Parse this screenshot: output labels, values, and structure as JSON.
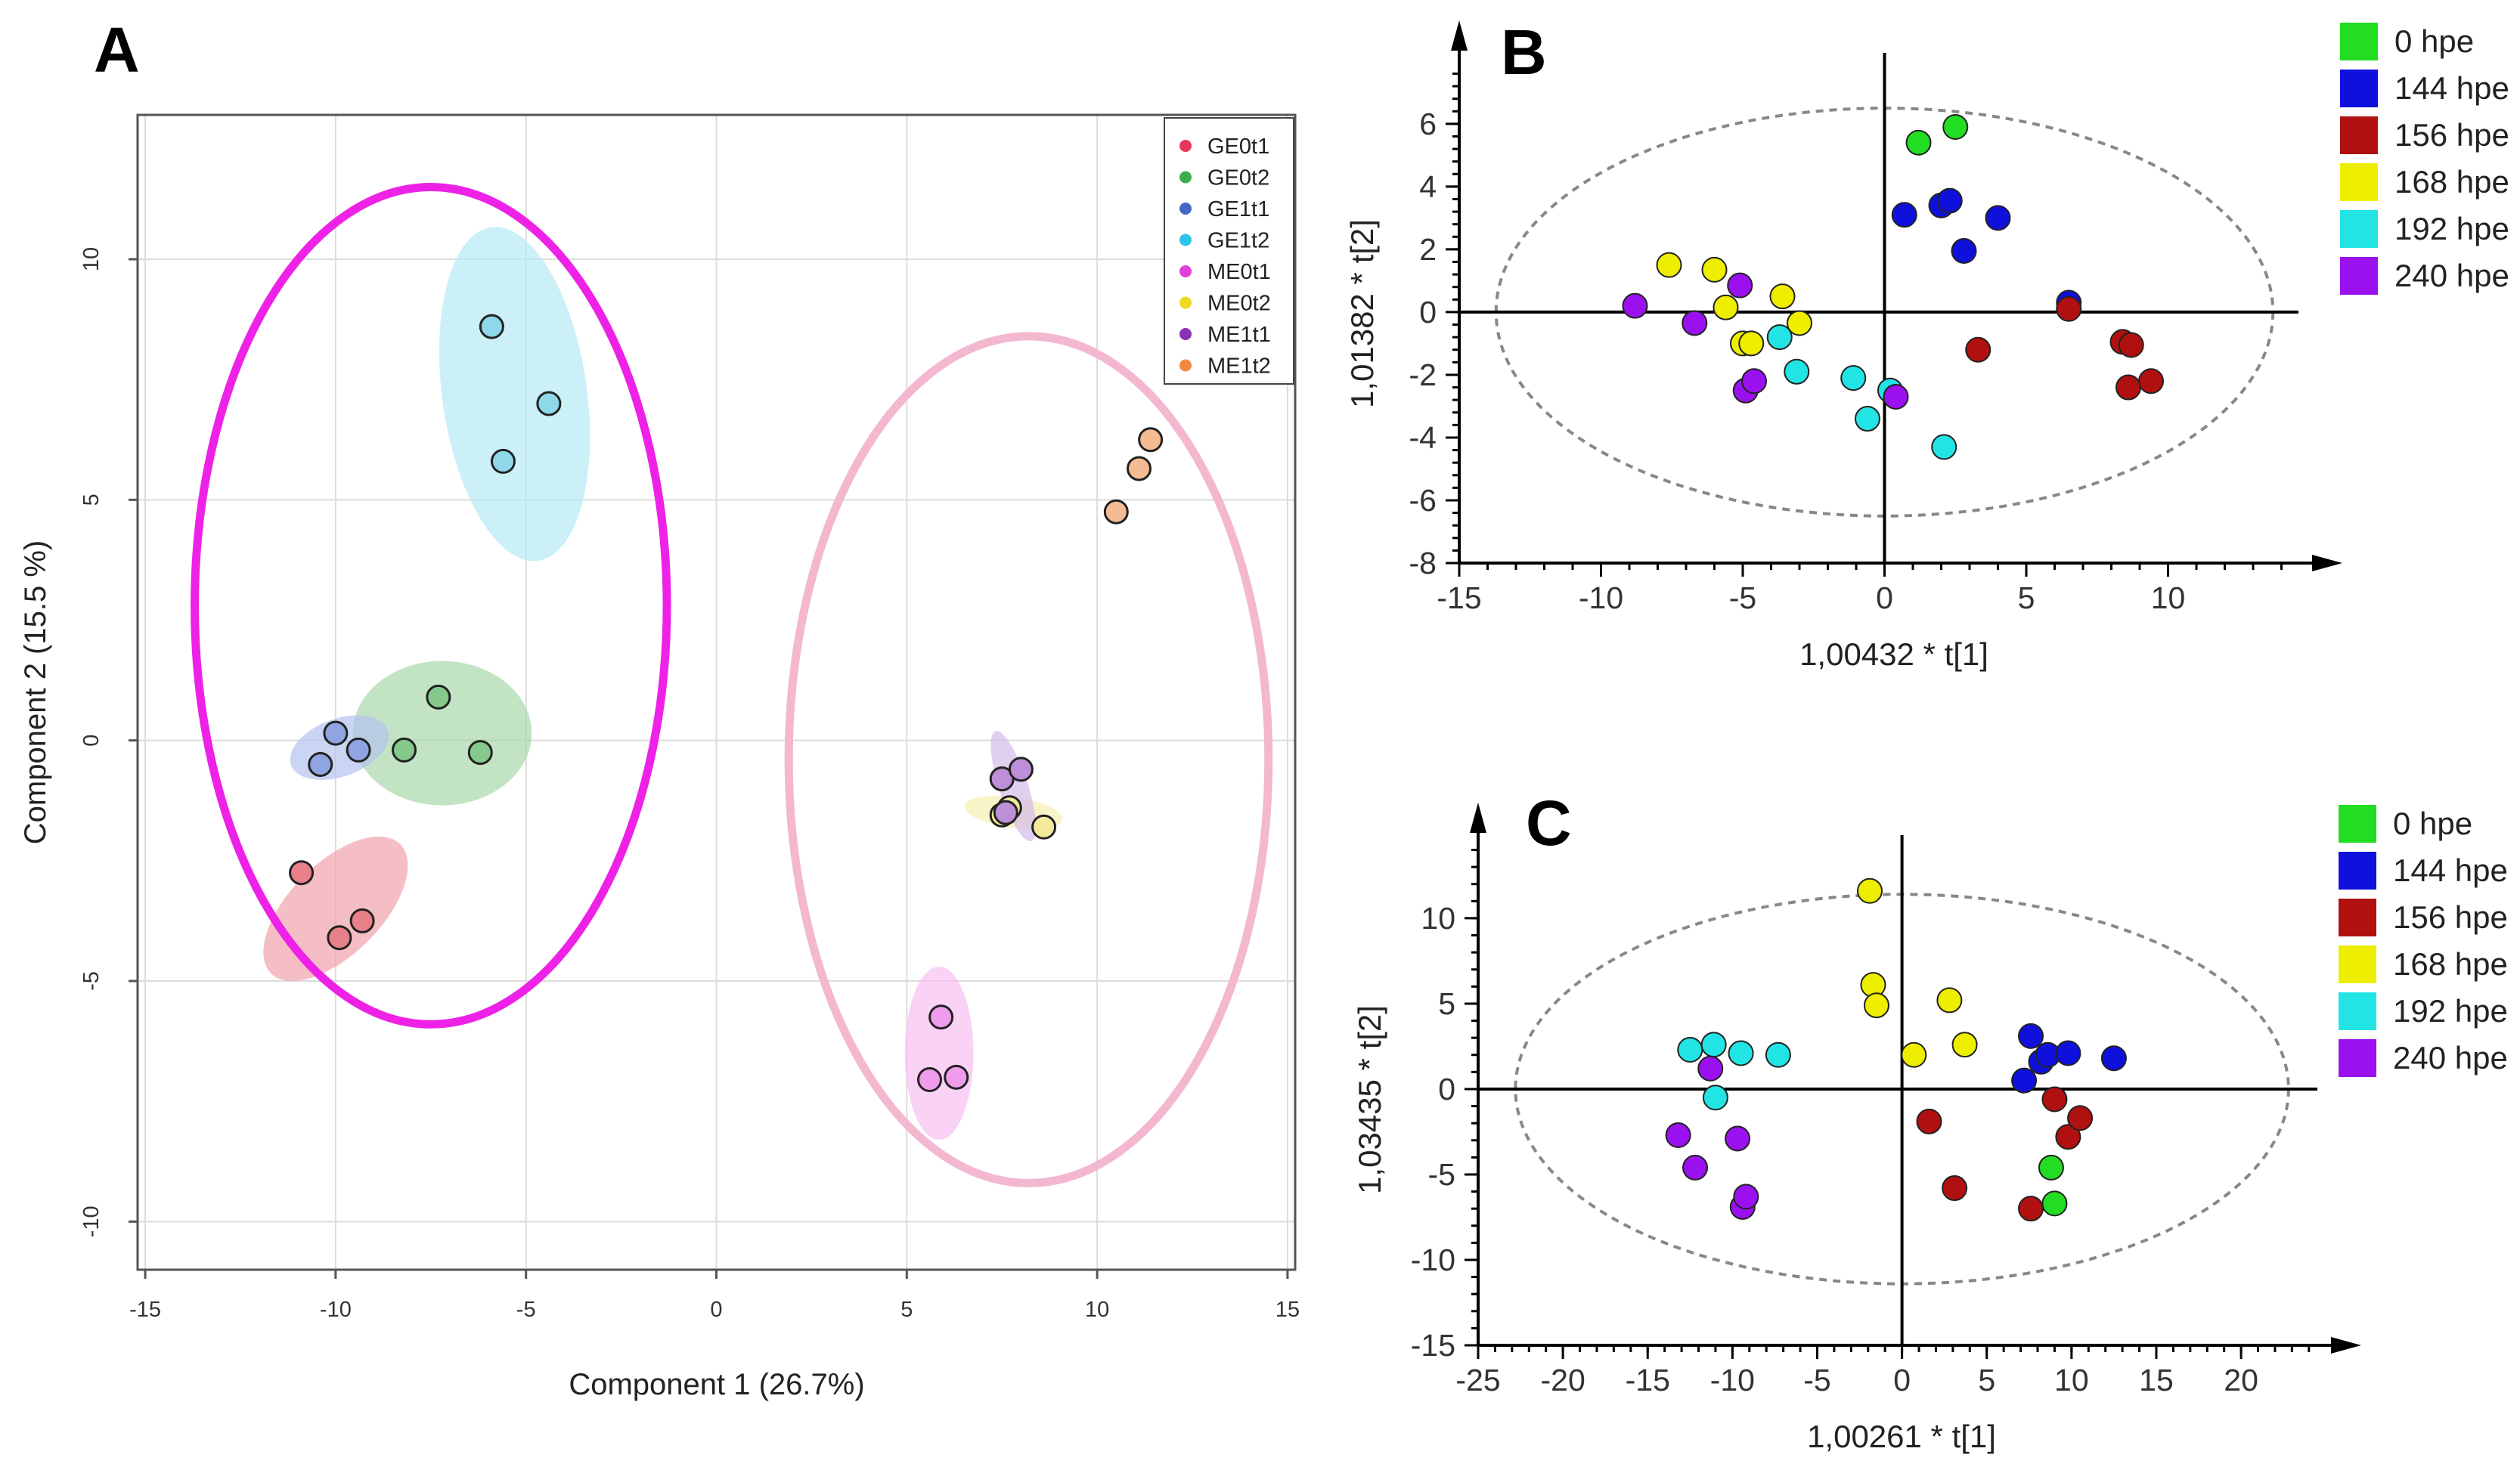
{
  "panels": {
    "a": {
      "label": "A"
    },
    "b": {
      "label": "B"
    },
    "c": {
      "label": "C"
    }
  },
  "chart_data": [
    {
      "type": "scatter",
      "panel": "A",
      "title": "",
      "xlabel": "Component 1 (26.7%)",
      "ylabel": "Component 2 (15.5 %)",
      "xlim": [
        -15.2,
        15.2
      ],
      "ylim": [
        -11,
        13
      ],
      "xticks": [
        -15,
        -10,
        -5,
        0,
        5,
        10,
        15
      ],
      "yticks": [
        -10,
        -5,
        0,
        5,
        10
      ],
      "grid": true,
      "legend_position": "top-right",
      "series": [
        {
          "name": "GE0t1",
          "color": "#e8365a",
          "fill": "#e8808a",
          "x": [
            -10.9,
            -9.9,
            -9.3
          ],
          "y": [
            -2.75,
            -4.1,
            -3.75
          ]
        },
        {
          "name": "GE0t2",
          "color": "#3aae4a",
          "fill": "#86c98c",
          "x": [
            -8.2,
            -7.3,
            -6.2
          ],
          "y": [
            -0.2,
            0.9,
            -0.25
          ]
        },
        {
          "name": "GE1t1",
          "color": "#4467c4",
          "fill": "#8fa4e0",
          "x": [
            -10.4,
            -10.0,
            -9.4
          ],
          "y": [
            -0.5,
            0.15,
            -0.2
          ]
        },
        {
          "name": "GE1t2",
          "color": "#2cc4e8",
          "fill": "#8fd8ea",
          "x": [
            -5.9,
            -5.6,
            -4.4
          ],
          "y": [
            8.6,
            5.8,
            7.0
          ]
        },
        {
          "name": "ME0t1",
          "color": "#e040d8",
          "fill": "#f09cec",
          "x": [
            5.6,
            5.9,
            6.3
          ],
          "y": [
            -7.05,
            -5.75,
            -7.0
          ]
        },
        {
          "name": "ME0t2",
          "color": "#f0d820",
          "fill": "#f4e99a",
          "x": [
            7.5,
            7.7,
            8.6
          ],
          "y": [
            -1.55,
            -1.4,
            -1.8
          ]
        },
        {
          "name": "ME1t1",
          "color": "#8a32b4",
          "fill": "#bd8fd8",
          "x": [
            7.5,
            8.0,
            7.6
          ],
          "y": [
            -0.8,
            -0.6,
            -1.5
          ]
        },
        {
          "name": "ME1t2",
          "color": "#f08a40",
          "fill": "#f5bb93",
          "x": [
            10.5,
            11.1,
            11.4
          ],
          "y": [
            4.75,
            5.65,
            6.25
          ]
        }
      ],
      "annotations": {
        "group_ellipses": [
          {
            "center": [
              -7.5,
              2.8
            ],
            "radii": [
              6.2,
              8.7
            ],
            "angle_deg": 0,
            "stroke": "#ee22e6",
            "label": "GE"
          },
          {
            "center": [
              8.2,
              -0.4
            ],
            "radii": [
              6.3,
              8.8
            ],
            "angle_deg": 0,
            "stroke": "#f4b7d0",
            "label": "ME"
          }
        ],
        "cluster_ellipses": [
          {
            "center": [
              -10.0,
              -3.5
            ],
            "radii": [
              2.4,
              0.95
            ],
            "angle_deg": 45,
            "fill": "#f1a3ad"
          },
          {
            "center": [
              -7.2,
              0.15
            ],
            "radii": [
              2.35,
              1.5
            ],
            "angle_deg": 0,
            "fill": "#aad7ad"
          },
          {
            "center": [
              -9.9,
              -0.15
            ],
            "radii": [
              1.35,
              0.6
            ],
            "angle_deg": 20,
            "fill": "#b3c3ee"
          },
          {
            "center": [
              -5.3,
              7.2
            ],
            "radii": [
              1.9,
              3.5
            ],
            "angle_deg": 8,
            "fill": "#b5e9f4"
          },
          {
            "center": [
              5.85,
              -6.5
            ],
            "radii": [
              0.9,
              1.8
            ],
            "angle_deg": 0,
            "fill": "#f6bff2"
          },
          {
            "center": [
              7.8,
              -1.5
            ],
            "radii": [
              1.3,
              0.32
            ],
            "angle_deg": -8,
            "fill": "#f7eeb0"
          },
          {
            "center": [
              7.8,
              -0.95
            ],
            "radii": [
              0.38,
              1.2
            ],
            "angle_deg": 18,
            "fill": "#d4bbe8"
          }
        ]
      }
    },
    {
      "type": "scatter",
      "panel": "B",
      "title": "",
      "xlabel": "1,00432 * t[1]",
      "ylabel": "1,01382 * t[2]",
      "xlim": [
        -15,
        14.6
      ],
      "ylim": [
        -8,
        7.9
      ],
      "xticks": [
        -15,
        -10,
        -5,
        0,
        5,
        10
      ],
      "yticks": [
        -8,
        -6,
        -4,
        -2,
        0,
        2,
        4,
        6
      ],
      "grid": false,
      "legend_position": "top-right",
      "hotelling_ellipse": {
        "center": [
          0,
          0
        ],
        "radii": [
          13.7,
          6.5
        ]
      },
      "series": [
        {
          "name": "0 hpe",
          "color": "#22dd22",
          "x": [
            1.2,
            2.5
          ],
          "y": [
            5.4,
            5.9
          ]
        },
        {
          "name": "144 hpe",
          "color": "#1010dd",
          "x": [
            0.7,
            2.0,
            2.3,
            2.8,
            4.0,
            6.5
          ],
          "y": [
            3.1,
            3.4,
            3.55,
            1.95,
            3.0,
            0.3
          ]
        },
        {
          "name": "156 hpe",
          "color": "#b01010",
          "x": [
            3.3,
            6.5,
            8.4,
            8.7,
            8.6,
            9.4
          ],
          "y": [
            -1.2,
            0.1,
            -0.95,
            -1.05,
            -2.4,
            -2.2
          ]
        },
        {
          "name": "168 hpe",
          "color": "#eeee00",
          "x": [
            -7.6,
            -6.0,
            -5.6,
            -5.0,
            -3.6,
            -3.0,
            -4.7
          ],
          "y": [
            1.5,
            1.35,
            0.15,
            -1.0,
            0.5,
            -0.35,
            -1.0
          ]
        },
        {
          "name": "192 hpe",
          "color": "#22e4e4",
          "x": [
            -3.7,
            -3.1,
            -1.1,
            -0.6,
            0.2,
            2.1
          ],
          "y": [
            -0.8,
            -1.9,
            -2.1,
            -3.4,
            -2.5,
            -4.3
          ]
        },
        {
          "name": "240 hpe",
          "color": "#9b10ee",
          "x": [
            -8.8,
            -6.7,
            -5.1,
            -4.9,
            -4.6,
            0.4
          ],
          "y": [
            0.2,
            -0.35,
            0.85,
            -2.5,
            -2.2,
            -2.7
          ]
        }
      ]
    },
    {
      "type": "scatter",
      "panel": "C",
      "title": "",
      "xlabel": "1,00261 * t[1]",
      "ylabel": "1,03435 * t[2]",
      "xlim": [
        -25,
        24.5
      ],
      "ylim": [
        -15,
        14.2
      ],
      "xticks": [
        -25,
        -20,
        -15,
        -10,
        -5,
        0,
        5,
        10,
        15,
        20
      ],
      "yticks": [
        -15,
        -10,
        -5,
        0,
        5,
        10
      ],
      "grid": false,
      "legend_position": "top-right",
      "hotelling_ellipse": {
        "center": [
          0,
          0
        ],
        "radii": [
          22.8,
          11.4
        ]
      },
      "series": [
        {
          "name": "0 hpe",
          "color": "#22dd22",
          "x": [
            8.8,
            9.0
          ],
          "y": [
            -4.6,
            -6.7
          ]
        },
        {
          "name": "144 hpe",
          "color": "#1010dd",
          "x": [
            7.2,
            7.6,
            8.2,
            8.6,
            9.8,
            12.5
          ],
          "y": [
            0.5,
            3.1,
            1.6,
            2.0,
            2.1,
            1.8
          ]
        },
        {
          "name": "156 hpe",
          "color": "#b01010",
          "x": [
            1.6,
            3.1,
            7.6,
            9.0,
            9.8,
            10.5
          ],
          "y": [
            -1.9,
            -5.8,
            -7.0,
            -0.6,
            -2.8,
            -1.7
          ]
        },
        {
          "name": "168 hpe",
          "color": "#eeee00",
          "x": [
            -1.9,
            -1.7,
            -1.5,
            0.7,
            2.8,
            3.7
          ],
          "y": [
            11.6,
            6.1,
            4.9,
            2.0,
            5.2,
            2.6
          ]
        },
        {
          "name": "192 hpe",
          "color": "#22e4e4",
          "x": [
            -12.5,
            -11.1,
            -11.0,
            -9.5,
            -7.3
          ],
          "y": [
            2.3,
            2.6,
            -0.5,
            2.1,
            2.0
          ]
        },
        {
          "name": "240 hpe",
          "color": "#9b10ee",
          "x": [
            -13.2,
            -12.2,
            -11.3,
            -9.7,
            -9.4,
            -9.2
          ],
          "y": [
            -2.7,
            -4.6,
            1.2,
            -2.9,
            -6.9,
            -6.3
          ]
        }
      ]
    }
  ]
}
